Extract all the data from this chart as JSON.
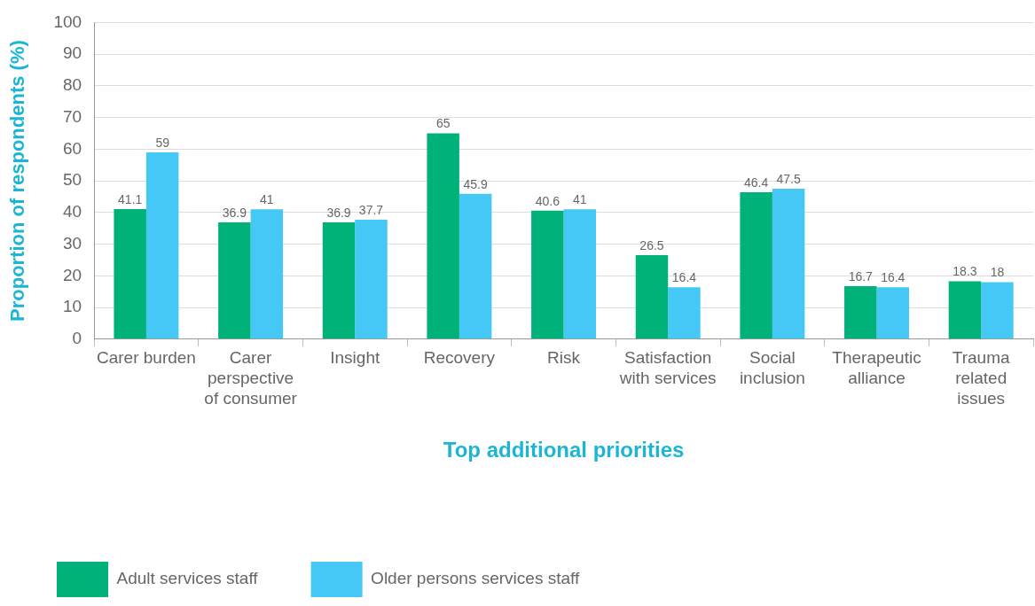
{
  "chart_data": {
    "type": "bar",
    "xlabel": "Top additional priorities",
    "ylabel": "Proportion of respondents (%)",
    "categories": [
      "Carer burden",
      "Carer perspective of consumer",
      "Insight",
      "Recovery",
      "Risk",
      "Satisfaction with services",
      "Social inclusion",
      "Therapeutic alliance",
      "Trauma related issues"
    ],
    "series": [
      {
        "name": "Adult services staff",
        "color": "#00b27a",
        "values": [
          41.1,
          36.9,
          36.9,
          65,
          40.6,
          26.5,
          46.4,
          16.7,
          18.3
        ]
      },
      {
        "name": "Older persons services staff",
        "color": "#45c8f5",
        "values": [
          59,
          41,
          37.7,
          45.9,
          41,
          16.4,
          47.5,
          16.4,
          18
        ]
      }
    ],
    "ylim": [
      0,
      100
    ],
    "yticks": [
      0,
      10,
      20,
      30,
      40,
      50,
      60,
      70,
      80,
      90,
      100
    ],
    "grid": "y",
    "legend": "bottom",
    "data_labels": true
  }
}
